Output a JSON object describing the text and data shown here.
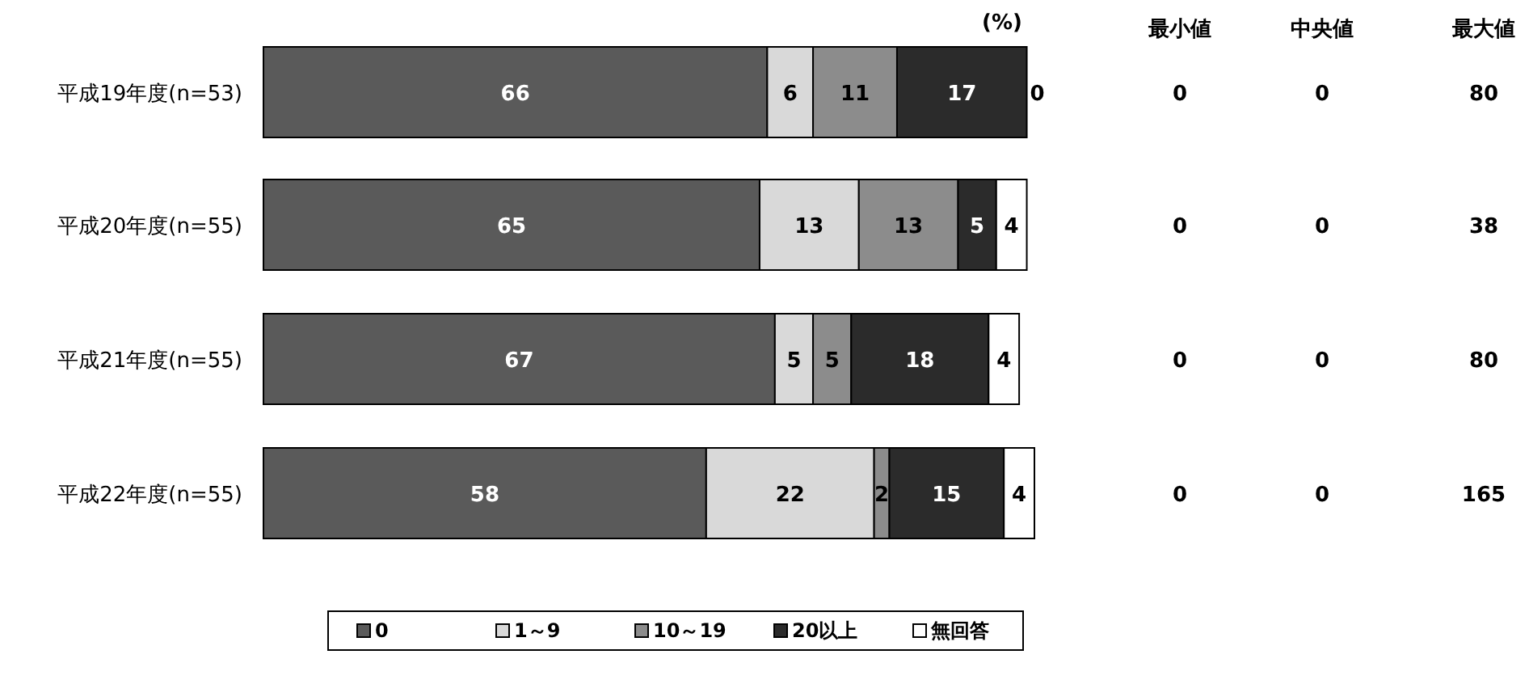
{
  "chart_data": [
    {
      "type": "bar",
      "orientation": "horizontal",
      "stacked": true,
      "data_labels": true,
      "legend": "bottom",
      "categories": [
        "平成19年度(n=53)",
        "平成20年度(n=55)",
        "平成21年度(n=55)",
        "平成22年度(n=55)"
      ],
      "annotations": [
        "(%)"
      ],
      "series": [
        {
          "name": "0",
          "color": "#5a5a5a",
          "values": [
            66,
            65,
            67,
            58
          ]
        },
        {
          "name": "1～9",
          "color": "#d9d9d9",
          "values": [
            6,
            13,
            5,
            22
          ]
        },
        {
          "name": "10～19",
          "color": "#8c8c8c",
          "values": [
            11,
            13,
            5,
            2
          ]
        },
        {
          "name": "20以上",
          "color": "#2b2b2b",
          "values": [
            17,
            5,
            18,
            15
          ]
        },
        {
          "name": "無回答",
          "color": "#ffffff",
          "values": [
            0,
            4,
            4,
            4
          ]
        }
      ]
    },
    {
      "type": "other",
      "categories": [
        "最小値",
        "中央値",
        "最大値"
      ],
      "annotations": [
        "0",
        "0",
        "80",
        "0",
        "0",
        "38",
        "0",
        "0",
        "80",
        "0",
        "0",
        "165"
      ]
    }
  ]
}
